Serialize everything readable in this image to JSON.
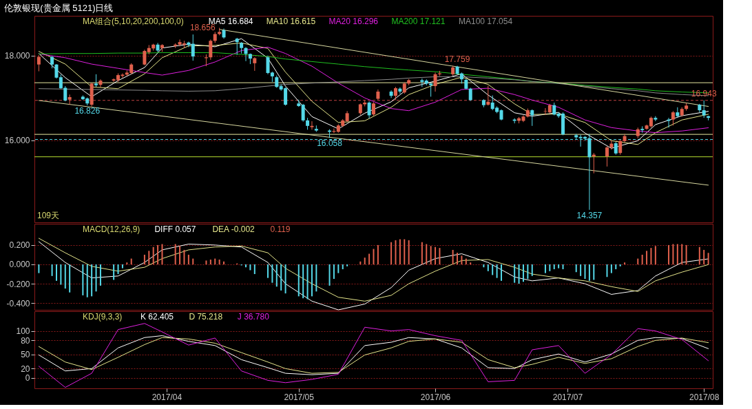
{
  "chart_data": [
    {
      "type": "candlestick",
      "title": "伦敦银现(贵金属 5121)日线",
      "legend": "top left",
      "legend_title": "MA组合(5,10,20,200,100,0)",
      "xlim": [
        "2017-03-02",
        "2017-08-03"
      ],
      "ylim": [
        14.06,
        18.94
      ],
      "yticks": [
        {
          "value": 16,
          "label": "16.000"
        },
        {
          "value": 18,
          "label": "18.000"
        }
      ],
      "tick_labels": "y",
      "grid": "y",
      "x": [
        "2017-03-03",
        "2017-03-06",
        "2017-03-07",
        "2017-03-08",
        "2017-03-09",
        "2017-03-10",
        "2017-03-13",
        "2017-03-14",
        "2017-03-15",
        "2017-03-16",
        "2017-03-17",
        "2017-03-20",
        "2017-03-21",
        "2017-03-22",
        "2017-03-23",
        "2017-03-24",
        "2017-03-27",
        "2017-03-28",
        "2017-03-29",
        "2017-03-30",
        "2017-03-31",
        "2017-04-03",
        "2017-04-04",
        "2017-04-05",
        "2017-04-06",
        "2017-04-07",
        "2017-04-10",
        "2017-04-11",
        "2017-04-12",
        "2017-04-13",
        "2017-04-14",
        "2017-04-17",
        "2017-04-18",
        "2017-04-19",
        "2017-04-20",
        "2017-04-21",
        "2017-04-24",
        "2017-04-25",
        "2017-04-26",
        "2017-04-27",
        "2017-04-28",
        "2017-05-01",
        "2017-05-02",
        "2017-05-03",
        "2017-05-04",
        "2017-05-05",
        "2017-05-08",
        "2017-05-09",
        "2017-05-10",
        "2017-05-11",
        "2017-05-12",
        "2017-05-15",
        "2017-05-16",
        "2017-05-17",
        "2017-05-18",
        "2017-05-19",
        "2017-05-22",
        "2017-05-23",
        "2017-05-24",
        "2017-05-25",
        "2017-05-26",
        "2017-05-29",
        "2017-05-30",
        "2017-05-31",
        "2017-06-01",
        "2017-06-02",
        "2017-06-05",
        "2017-06-06",
        "2017-06-07",
        "2017-06-08",
        "2017-06-09",
        "2017-06-12",
        "2017-06-13",
        "2017-06-14",
        "2017-06-15",
        "2017-06-16",
        "2017-06-19",
        "2017-06-20",
        "2017-06-21",
        "2017-06-22",
        "2017-06-23",
        "2017-06-26",
        "2017-06-27",
        "2017-06-28",
        "2017-06-29",
        "2017-06-30",
        "2017-07-03",
        "2017-07-04",
        "2017-07-05",
        "2017-07-06",
        "2017-07-07",
        "2017-07-10",
        "2017-07-11",
        "2017-07-12",
        "2017-07-13",
        "2017-07-14",
        "2017-07-17",
        "2017-07-18",
        "2017-07-19",
        "2017-07-20",
        "2017-07-21",
        "2017-07-24",
        "2017-07-25",
        "2017-07-26",
        "2017-07-27",
        "2017-07-28",
        "2017-07-31",
        "2017-08-01",
        "2017-08-02"
      ],
      "ohlc": [
        [
          17.79,
          18.01,
          17.63,
          17.97
        ],
        [
          17.97,
          17.99,
          17.7,
          17.79
        ],
        [
          17.79,
          17.8,
          17.46,
          17.48
        ],
        [
          17.49,
          17.55,
          17.22,
          17.23
        ],
        [
          17.24,
          17.28,
          16.92,
          16.94
        ],
        [
          16.96,
          17.08,
          16.84,
          17.02
        ],
        [
          17.03,
          17.06,
          16.95,
          16.97
        ],
        [
          16.99,
          17.01,
          16.826,
          16.87
        ],
        [
          16.84,
          17.36,
          16.8,
          17.34
        ],
        [
          17.34,
          17.56,
          17.26,
          17.3
        ],
        [
          17.31,
          17.44,
          17.25,
          17.41
        ],
        [
          17.41,
          17.46,
          17.38,
          17.44
        ],
        [
          17.42,
          17.58,
          17.38,
          17.54
        ],
        [
          17.52,
          17.58,
          17.48,
          17.55
        ],
        [
          17.55,
          17.65,
          17.52,
          17.6
        ],
        [
          17.59,
          17.82,
          17.56,
          17.79
        ],
        [
          17.79,
          18.14,
          17.77,
          18.11
        ],
        [
          18.08,
          18.25,
          18.03,
          18.18
        ],
        [
          18.17,
          18.28,
          18.12,
          18.26
        ],
        [
          18.26,
          18.3,
          18.08,
          18.12
        ],
        [
          18.18,
          18.27,
          18.09,
          18.25
        ],
        [
          18.23,
          18.29,
          18.18,
          18.26
        ],
        [
          18.26,
          18.38,
          18.22,
          18.32
        ],
        [
          18.26,
          18.35,
          18.18,
          18.29
        ],
        [
          18.31,
          18.33,
          18.2,
          18.25
        ],
        [
          18.28,
          18.5,
          17.88,
          17.98
        ],
        [
          17.94,
          18.03,
          17.75,
          17.96
        ],
        [
          17.96,
          18.38,
          17.9,
          18.35
        ],
        [
          18.35,
          18.56,
          18.3,
          18.51
        ],
        [
          18.51,
          18.656,
          18.48,
          18.56
        ],
        [
          18.6,
          18.64,
          18.4,
          18.43
        ],
        [
          18.4,
          18.42,
          18.02,
          18.32
        ],
        [
          18.3,
          18.32,
          18.05,
          18.18
        ],
        [
          18.18,
          18.2,
          17.87,
          18.04
        ],
        [
          18.04,
          18.05,
          17.8,
          17.93
        ],
        [
          17.82,
          17.96,
          17.64,
          17.94
        ],
        [
          17.96,
          18.0,
          17.56,
          17.59
        ],
        [
          17.6,
          17.62,
          17.38,
          17.51
        ],
        [
          17.49,
          17.53,
          17.24,
          17.26
        ],
        [
          17.28,
          17.32,
          17.17,
          17.2
        ],
        [
          17.23,
          17.25,
          16.82,
          16.84
        ],
        [
          16.87,
          16.96,
          16.79,
          16.81
        ],
        [
          16.84,
          16.86,
          16.44,
          16.47
        ],
        [
          16.47,
          16.53,
          16.25,
          16.34
        ],
        [
          16.31,
          16.45,
          16.25,
          16.34
        ],
        [
          16.27,
          16.35,
          16.2,
          16.23
        ],
        [
          16.23,
          16.26,
          16.058,
          16.2
        ],
        [
          16.2,
          16.28,
          16.17,
          16.22
        ],
        [
          16.2,
          16.38,
          16.18,
          16.35
        ],
        [
          16.34,
          16.5,
          16.31,
          16.47
        ],
        [
          16.45,
          16.69,
          16.43,
          16.64
        ],
        [
          16.64,
          16.87,
          16.6,
          16.85
        ],
        [
          16.85,
          16.95,
          16.8,
          16.89
        ],
        [
          16.89,
          16.92,
          16.52,
          16.59
        ],
        [
          16.61,
          16.9,
          16.58,
          16.87
        ],
        [
          16.98,
          17.2,
          16.95,
          17.15
        ],
        [
          17.15,
          17.18,
          17.0,
          17.05
        ],
        [
          17.05,
          17.26,
          16.95,
          17.23
        ],
        [
          17.22,
          17.25,
          17.1,
          17.15
        ],
        [
          17.13,
          17.37,
          17.1,
          17.34
        ],
        [
          17.34,
          17.45,
          17.3,
          17.42
        ],
        [
          17.42,
          17.46,
          17.26,
          17.38
        ],
        [
          17.41,
          17.44,
          17.3,
          17.34
        ],
        [
          17.34,
          17.36,
          17.03,
          17.3
        ],
        [
          17.28,
          17.6,
          17.15,
          17.56
        ],
        [
          17.56,
          17.64,
          17.52,
          17.58
        ],
        [
          17.56,
          17.76,
          17.53,
          17.72
        ],
        [
          17.74,
          17.759,
          17.55,
          17.57
        ],
        [
          17.58,
          17.6,
          17.34,
          17.44
        ],
        [
          17.43,
          17.45,
          17.2,
          17.22
        ],
        [
          17.22,
          17.24,
          16.93,
          16.95
        ],
        [
          16.95,
          16.97,
          16.78,
          16.83
        ],
        [
          16.84,
          17.29,
          16.82,
          16.91
        ],
        [
          16.89,
          17.06,
          16.71,
          16.74
        ],
        [
          16.77,
          16.8,
          16.64,
          16.67
        ],
        [
          16.71,
          16.73,
          16.47,
          16.49
        ],
        [
          16.49,
          16.52,
          16.4,
          16.46
        ],
        [
          16.46,
          16.55,
          16.4,
          16.52
        ],
        [
          16.46,
          16.59,
          16.43,
          16.56
        ],
        [
          16.56,
          16.75,
          16.54,
          16.71
        ],
        [
          16.71,
          16.73,
          16.34,
          16.59
        ],
        [
          16.68,
          16.76,
          16.6,
          16.69
        ],
        [
          16.66,
          16.86,
          16.64,
          16.83
        ],
        [
          16.83,
          16.89,
          16.59,
          16.61
        ],
        [
          16.63,
          16.66,
          16.53,
          16.57
        ],
        [
          16.63,
          16.66,
          16.12,
          16.14
        ],
        [
          16.12,
          16.15,
          16.02,
          16.07
        ],
        [
          16.08,
          16.13,
          15.85,
          16.05
        ],
        [
          16.08,
          16.1,
          15.99,
          16.04
        ],
        [
          16.05,
          16.15,
          14.357,
          15.6
        ],
        [
          15.62,
          15.7,
          15.22,
          15.66
        ],
        [
          15.62,
          15.86,
          15.38,
          15.83
        ],
        [
          15.83,
          16.0,
          15.78,
          15.92
        ],
        [
          15.93,
          15.96,
          15.66,
          15.69
        ],
        [
          15.7,
          16.02,
          15.66,
          15.98
        ],
        [
          15.98,
          16.15,
          15.95,
          16.1
        ],
        [
          16.1,
          16.3,
          16.05,
          16.26
        ],
        [
          16.27,
          16.33,
          16.18,
          16.24
        ],
        [
          16.27,
          16.37,
          16.25,
          16.35
        ],
        [
          16.33,
          16.56,
          16.3,
          16.53
        ],
        [
          16.53,
          16.57,
          16.45,
          16.49
        ],
        [
          16.49,
          16.53,
          16.3,
          16.46
        ],
        [
          16.49,
          16.69,
          16.35,
          16.66
        ],
        [
          16.66,
          16.78,
          16.54,
          16.57
        ],
        [
          16.59,
          16.78,
          16.56,
          16.74
        ],
        [
          16.74,
          16.88,
          16.7,
          16.82
        ],
        [
          16.84,
          16.86,
          16.66,
          16.71
        ],
        [
          16.71,
          16.943,
          16.53,
          16.59
        ],
        [
          16.57,
          16.58,
          16.47,
          16.53
        ]
      ],
      "colors": [
        "#e0604c",
        "#54d8e8",
        "#54d8e8",
        "#54d8e8",
        "#54d8e8",
        "#e0604c",
        "#54d8e8",
        "#54d8e8",
        "#e0604c",
        "#54d8e8",
        "#e0604c",
        "#e0604c",
        "#e0604c",
        "#e0604c",
        "#e0604c",
        "#e0604c",
        "#e0604c",
        "#e0604c",
        "#e0604c",
        "#54d8e8",
        "#e0604c",
        "#e0604c",
        "#e0604c",
        "#e0604c",
        "#54d8e8",
        "#54d8e8",
        "#e0604c",
        "#e0604c",
        "#e0604c",
        "#e0604c",
        "#54d8e8",
        "#54d8e8",
        "#54d8e8",
        "#54d8e8",
        "#54d8e8",
        "#e0604c",
        "#54d8e8",
        "#54d8e8",
        "#54d8e8",
        "#54d8e8",
        "#54d8e8",
        "#54d8e8",
        "#54d8e8",
        "#54d8e8",
        "#e0604c",
        "#54d8e8",
        "#54d8e8",
        "#e0604c",
        "#e0604c",
        "#e0604c",
        "#e0604c",
        "#e0604c",
        "#e0604c",
        "#54d8e8",
        "#e0604c",
        "#e0604c",
        "#54d8e8",
        "#e0604c",
        "#54d8e8",
        "#e0604c",
        "#e0604c",
        "#54d8e8",
        "#54d8e8",
        "#54d8e8",
        "#e0604c",
        "#e0604c",
        "#e0604c",
        "#54d8e8",
        "#54d8e8",
        "#54d8e8",
        "#54d8e8",
        "#54d8e8",
        "#e0604c",
        "#54d8e8",
        "#54d8e8",
        "#54d8e8",
        "#54d8e8",
        "#e0604c",
        "#e0604c",
        "#e0604c",
        "#54d8e8",
        "#e0604c",
        "#e0604c",
        "#54d8e8",
        "#54d8e8",
        "#54d8e8",
        "#54d8e8",
        "#54d8e8",
        "#54d8e8",
        "#54d8e8",
        "#e0604c",
        "#e0604c",
        "#e0604c",
        "#54d8e8",
        "#e0604c",
        "#e0604c",
        "#e0604c",
        "#54d8e8",
        "#e0604c",
        "#e0604c",
        "#54d8e8",
        "#54d8e8",
        "#e0604c",
        "#54d8e8",
        "#e0604c",
        "#e0604c",
        "#54d8e8",
        "#54d8e8",
        "#54d8e8"
      ],
      "series": [
        {
          "name": "MA5 16.684",
          "type": "line",
          "color": "#ffffff",
          "x": [
            "2017-03-03",
            "2017-03-09",
            "2017-03-15",
            "2017-03-21",
            "2017-03-27",
            "2017-03-31",
            "2017-04-06",
            "2017-04-12",
            "2017-04-18",
            "2017-04-24",
            "2017-04-28",
            "2017-05-04",
            "2017-05-10",
            "2017-05-16",
            "2017-05-22",
            "2017-05-26",
            "2017-06-01",
            "2017-06-07",
            "2017-06-13",
            "2017-06-19",
            "2017-06-23",
            "2017-06-29",
            "2017-07-05",
            "2017-07-11",
            "2017-07-17",
            "2017-07-21",
            "2017-07-27",
            "2017-08-02"
          ],
          "values": [
            18.05,
            17.48,
            17.03,
            17.41,
            17.72,
            18.18,
            18.27,
            18.21,
            18.4,
            17.94,
            17.28,
            16.56,
            16.27,
            16.64,
            16.91,
            17.24,
            17.4,
            17.57,
            17.07,
            16.65,
            16.57,
            16.66,
            16.17,
            15.81,
            15.99,
            16.37,
            16.58,
            16.684
          ]
        },
        {
          "name": "MA10 16.615",
          "type": "line",
          "color": "#e6e68c",
          "x": [
            "2017-03-03",
            "2017-03-09",
            "2017-03-15",
            "2017-03-21",
            "2017-03-27",
            "2017-03-31",
            "2017-04-06",
            "2017-04-12",
            "2017-04-18",
            "2017-04-24",
            "2017-04-28",
            "2017-05-04",
            "2017-05-10",
            "2017-05-16",
            "2017-05-22",
            "2017-05-26",
            "2017-06-01",
            "2017-06-07",
            "2017-06-13",
            "2017-06-19",
            "2017-06-23",
            "2017-06-29",
            "2017-07-05",
            "2017-07-11",
            "2017-07-17",
            "2017-07-21",
            "2017-07-27",
            "2017-08-02"
          ],
          "values": [
            18.1,
            17.8,
            17.26,
            17.22,
            17.57,
            17.95,
            18.23,
            18.24,
            18.3,
            18.17,
            17.61,
            16.92,
            16.42,
            16.46,
            16.78,
            17.08,
            17.32,
            17.49,
            17.32,
            16.86,
            16.61,
            16.62,
            16.42,
            15.99,
            15.9,
            16.18,
            16.48,
            16.615
          ]
        },
        {
          "name": "MA20 16.296",
          "type": "line",
          "color": "#e020e0",
          "x": [
            "2017-03-03",
            "2017-03-09",
            "2017-03-15",
            "2017-03-21",
            "2017-03-27",
            "2017-03-31",
            "2017-04-06",
            "2017-04-12",
            "2017-04-18",
            "2017-04-24",
            "2017-04-28",
            "2017-05-04",
            "2017-05-10",
            "2017-05-16",
            "2017-05-22",
            "2017-05-26",
            "2017-06-01",
            "2017-06-07",
            "2017-06-13",
            "2017-06-19",
            "2017-06-23",
            "2017-06-29",
            "2017-07-05",
            "2017-07-11",
            "2017-07-17",
            "2017-07-21",
            "2017-07-27",
            "2017-08-02"
          ],
          "values": [
            18.04,
            17.95,
            17.8,
            17.7,
            17.6,
            17.54,
            17.65,
            17.85,
            18.12,
            18.2,
            18.05,
            17.75,
            17.35,
            17.0,
            16.75,
            16.7,
            16.9,
            17.2,
            17.23,
            17.08,
            16.95,
            16.78,
            16.48,
            16.3,
            16.22,
            16.18,
            16.22,
            16.296
          ]
        },
        {
          "name": "MA200 17.121",
          "type": "line",
          "color": "#20c020",
          "x": [
            "2017-03-03",
            "2017-03-09",
            "2017-03-15",
            "2017-03-21",
            "2017-03-27",
            "2017-03-31",
            "2017-04-06",
            "2017-04-12",
            "2017-04-18",
            "2017-04-24",
            "2017-04-28",
            "2017-05-04",
            "2017-05-10",
            "2017-05-16",
            "2017-05-22",
            "2017-05-26",
            "2017-06-01",
            "2017-06-07",
            "2017-06-13",
            "2017-06-19",
            "2017-06-23",
            "2017-06-29",
            "2017-07-05",
            "2017-07-11",
            "2017-07-17",
            "2017-07-21",
            "2017-07-27",
            "2017-08-02"
          ],
          "values": [
            18.04,
            18.05,
            18.05,
            18.06,
            18.06,
            18.07,
            18.07,
            18.07,
            18.03,
            17.98,
            17.92,
            17.86,
            17.8,
            17.74,
            17.69,
            17.66,
            17.62,
            17.56,
            17.5,
            17.44,
            17.39,
            17.35,
            17.3,
            17.25,
            17.21,
            17.17,
            17.14,
            17.121
          ]
        },
        {
          "name": "MA100 17.054",
          "type": "line",
          "color": "#8c8c8c",
          "x": [
            "2017-03-03",
            "2017-03-09",
            "2017-03-15",
            "2017-03-21",
            "2017-03-27",
            "2017-03-31",
            "2017-04-06",
            "2017-04-12",
            "2017-04-18",
            "2017-04-24",
            "2017-04-28",
            "2017-05-04",
            "2017-05-10",
            "2017-05-16",
            "2017-05-22",
            "2017-05-26",
            "2017-06-01",
            "2017-06-07",
            "2017-06-13",
            "2017-06-19",
            "2017-06-23",
            "2017-06-29",
            "2017-07-05",
            "2017-07-11",
            "2017-07-17",
            "2017-07-21",
            "2017-07-27",
            "2017-08-02"
          ],
          "values": [
            17.22,
            17.21,
            17.2,
            17.19,
            17.18,
            17.17,
            17.16,
            17.17,
            17.22,
            17.28,
            17.32,
            17.35,
            17.38,
            17.41,
            17.44,
            17.47,
            17.5,
            17.5,
            17.47,
            17.43,
            17.39,
            17.34,
            17.28,
            17.22,
            17.17,
            17.12,
            17.08,
            17.054
          ]
        },
        {
          "type": "line",
          "color": "#d8d8a0",
          "x": [
            "2017-04-13",
            "2017-08-02"
          ],
          "values": [
            18.62,
            16.8
          ]
        },
        {
          "type": "line",
          "color": "#d8d8a0",
          "x": [
            "2017-03-03",
            "2017-08-02"
          ],
          "values": [
            16.94,
            14.94
          ]
        }
      ],
      "ref_lines": [
        {
          "axis": "y",
          "value": 17.36,
          "color": "#e8e8a0"
        },
        {
          "axis": "y",
          "value": 16.14,
          "color": "#e8e8a0"
        },
        {
          "axis": "y",
          "value": 16.943,
          "color": "#c04040",
          "line_style": "dashed"
        },
        {
          "axis": "y",
          "value": 16.02,
          "color": "#54d8e8",
          "line_style": "dashed"
        },
        {
          "axis": "y",
          "value": 15.61,
          "color": "#b8e030"
        }
      ],
      "annotations": [
        {
          "text": "18.656",
          "x": "2017-04-13",
          "y": 18.656
        },
        {
          "text": "16.826",
          "x": "2017-03-14",
          "y": 16.826
        },
        {
          "text": "16.058",
          "x": "2017-05-08",
          "y": 16.058
        },
        {
          "text": "17.759",
          "x": "2017-06-06",
          "y": 17.759
        },
        {
          "text": "16.943",
          "x": "2017-08-01",
          "y": 16.943
        },
        {
          "text": "14.357",
          "x": "2017-07-06",
          "y": 14.357
        },
        "109天"
      ]
    },
    {
      "type": "bar",
      "legend": "top left",
      "legend_title": "MACD(12,26,9)",
      "xlim": [
        "2017-03-02",
        "2017-08-03"
      ],
      "ylim": [
        -0.47,
        0.42
      ],
      "yticks": [
        {
          "value": 0.2,
          "label": "0.200"
        },
        {
          "value": 0,
          "label": "0.000"
        },
        {
          "value": -0.2,
          "label": "-0.200"
        },
        {
          "value": -0.4,
          "label": "-0.400"
        }
      ],
      "tick_labels": "y",
      "grid": "y",
      "x": [
        "2017-03-03",
        "2017-03-06",
        "2017-03-07",
        "2017-03-08",
        "2017-03-09",
        "2017-03-10",
        "2017-03-13",
        "2017-03-14",
        "2017-03-15",
        "2017-03-16",
        "2017-03-17",
        "2017-03-20",
        "2017-03-21",
        "2017-03-22",
        "2017-03-23",
        "2017-03-24",
        "2017-03-27",
        "2017-03-28",
        "2017-03-29",
        "2017-03-30",
        "2017-03-31",
        "2017-04-03",
        "2017-04-04",
        "2017-04-05",
        "2017-04-06",
        "2017-04-07",
        "2017-04-10",
        "2017-04-11",
        "2017-04-12",
        "2017-04-13",
        "2017-04-14",
        "2017-04-17",
        "2017-04-18",
        "2017-04-19",
        "2017-04-20",
        "2017-04-21",
        "2017-04-24",
        "2017-04-25",
        "2017-04-26",
        "2017-04-27",
        "2017-04-28",
        "2017-05-01",
        "2017-05-02",
        "2017-05-03",
        "2017-05-04",
        "2017-05-05",
        "2017-05-08",
        "2017-05-09",
        "2017-05-10",
        "2017-05-11",
        "2017-05-12",
        "2017-05-15",
        "2017-05-16",
        "2017-05-17",
        "2017-05-18",
        "2017-05-19",
        "2017-05-22",
        "2017-05-23",
        "2017-05-24",
        "2017-05-25",
        "2017-05-26",
        "2017-05-29",
        "2017-05-30",
        "2017-05-31",
        "2017-06-01",
        "2017-06-02",
        "2017-06-05",
        "2017-06-06",
        "2017-06-07",
        "2017-06-08",
        "2017-06-09",
        "2017-06-12",
        "2017-06-13",
        "2017-06-14",
        "2017-06-15",
        "2017-06-16",
        "2017-06-19",
        "2017-06-20",
        "2017-06-21",
        "2017-06-22",
        "2017-06-23",
        "2017-06-26",
        "2017-06-27",
        "2017-06-28",
        "2017-06-29",
        "2017-06-30",
        "2017-07-03",
        "2017-07-04",
        "2017-07-05",
        "2017-07-06",
        "2017-07-07",
        "2017-07-10",
        "2017-07-11",
        "2017-07-12",
        "2017-07-13",
        "2017-07-14",
        "2017-07-17",
        "2017-07-18",
        "2017-07-19",
        "2017-07-20",
        "2017-07-21",
        "2017-07-24",
        "2017-07-25",
        "2017-07-26",
        "2017-07-27",
        "2017-07-28",
        "2017-07-31",
        "2017-08-01",
        "2017-08-02"
      ],
      "series": [
        {
          "name": "DIFF 0.057",
          "type": "line",
          "color": "#ffffff",
          "x": [
            "2017-03-03",
            "2017-03-09",
            "2017-03-15",
            "2017-03-21",
            "2017-03-27",
            "2017-03-31",
            "2017-04-06",
            "2017-04-12",
            "2017-04-18",
            "2017-04-24",
            "2017-04-28",
            "2017-05-04",
            "2017-05-10",
            "2017-05-16",
            "2017-05-22",
            "2017-05-26",
            "2017-06-01",
            "2017-06-07",
            "2017-06-13",
            "2017-06-19",
            "2017-06-23",
            "2017-06-29",
            "2017-07-05",
            "2017-07-11",
            "2017-07-17",
            "2017-07-21",
            "2017-07-27",
            "2017-08-02"
          ],
          "values": [
            0.235,
            0.02,
            -0.14,
            -0.12,
            0.02,
            0.15,
            0.21,
            0.2,
            0.18,
            0.02,
            -0.2,
            -0.38,
            -0.47,
            -0.41,
            -0.24,
            -0.06,
            0.06,
            0.11,
            0.02,
            -0.13,
            -0.17,
            -0.14,
            -0.2,
            -0.31,
            -0.27,
            -0.12,
            0.02,
            0.057
          ]
        },
        {
          "name": "DEA -0.002",
          "type": "line",
          "color": "#e6e68c",
          "x": [
            "2017-03-03",
            "2017-03-09",
            "2017-03-15",
            "2017-03-21",
            "2017-03-27",
            "2017-03-31",
            "2017-04-06",
            "2017-04-12",
            "2017-04-18",
            "2017-04-24",
            "2017-04-28",
            "2017-05-04",
            "2017-05-10",
            "2017-05-16",
            "2017-05-22",
            "2017-05-26",
            "2017-06-01",
            "2017-06-07",
            "2017-06-13",
            "2017-06-19",
            "2017-06-23",
            "2017-06-29",
            "2017-07-05",
            "2017-07-11",
            "2017-07-17",
            "2017-07-21",
            "2017-07-27",
            "2017-08-02"
          ],
          "values": [
            0.27,
            0.12,
            -0.02,
            -0.07,
            -0.03,
            0.06,
            0.15,
            0.18,
            0.19,
            0.12,
            -0.04,
            -0.2,
            -0.34,
            -0.38,
            -0.32,
            -0.2,
            -0.07,
            0.04,
            0.05,
            -0.03,
            -0.1,
            -0.14,
            -0.17,
            -0.23,
            -0.28,
            -0.17,
            -0.08,
            -0.002
          ]
        },
        {
          "name": "0.119",
          "type": "bar",
          "color": "#e0604c",
          "values": [
            -0.09,
            -0.12,
            -0.17,
            -0.21,
            -0.25,
            -0.29,
            -0.32,
            -0.34,
            -0.33,
            -0.28,
            -0.22,
            -0.16,
            -0.1,
            -0.04,
            0.02,
            0.06,
            0.1,
            0.14,
            0.18,
            0.2,
            0.21,
            0.21,
            0.19,
            0.15,
            0.1,
            0.06,
            0.04,
            0.05,
            0.06,
            0.05,
            0.03,
            0.01,
            -0.01,
            -0.03,
            -0.06,
            -0.1,
            -0.14,
            -0.19,
            -0.23,
            -0.27,
            -0.3,
            -0.33,
            -0.35,
            -0.36,
            -0.33,
            -0.28,
            -0.22,
            -0.15,
            -0.09,
            -0.05,
            -0.02,
            0.03,
            0.07,
            0.11,
            0.16,
            0.2,
            0.23,
            0.25,
            0.26,
            0.26,
            0.25,
            0.23,
            0.21,
            0.19,
            0.18,
            0.17,
            0.15,
            0.12,
            0.09,
            0.06,
            0.02,
            -0.03,
            -0.07,
            -0.11,
            -0.14,
            -0.17,
            -0.19,
            -0.2,
            -0.18,
            -0.15,
            -0.12,
            -0.09,
            -0.07,
            -0.05,
            -0.04,
            -0.05,
            -0.08,
            -0.12,
            -0.15,
            -0.17,
            -0.16,
            -0.13,
            -0.09,
            -0.05,
            -0.02,
            0.02,
            0.06,
            0.1,
            0.14,
            0.17,
            0.19,
            0.2,
            0.21,
            0.21,
            0.21,
            0.2,
            0.18,
            0.15,
            0.119
          ],
          "colors": [
            "#54d8e8",
            "#54d8e8",
            "#54d8e8",
            "#54d8e8",
            "#54d8e8",
            "#54d8e8",
            "#54d8e8",
            "#54d8e8",
            "#54d8e8",
            "#54d8e8",
            "#54d8e8",
            "#54d8e8",
            "#54d8e8",
            "#54d8e8",
            "#e0604c",
            "#e0604c",
            "#e0604c",
            "#e0604c",
            "#e0604c",
            "#e0604c",
            "#e0604c",
            "#e0604c",
            "#e0604c",
            "#e0604c",
            "#e0604c",
            "#e0604c",
            "#e0604c",
            "#e0604c",
            "#e0604c",
            "#e0604c",
            "#e0604c",
            "#e0604c",
            "#54d8e8",
            "#54d8e8",
            "#54d8e8",
            "#54d8e8",
            "#54d8e8",
            "#54d8e8",
            "#54d8e8",
            "#54d8e8",
            "#54d8e8",
            "#54d8e8",
            "#54d8e8",
            "#54d8e8",
            "#54d8e8",
            "#54d8e8",
            "#54d8e8",
            "#54d8e8",
            "#54d8e8",
            "#54d8e8",
            "#54d8e8",
            "#e0604c",
            "#e0604c",
            "#e0604c",
            "#e0604c",
            "#e0604c",
            "#e0604c",
            "#e0604c",
            "#e0604c",
            "#e0604c",
            "#e0604c",
            "#e0604c",
            "#e0604c",
            "#e0604c",
            "#e0604c",
            "#e0604c",
            "#e0604c",
            "#e0604c",
            "#e0604c",
            "#e0604c",
            "#e0604c",
            "#54d8e8",
            "#54d8e8",
            "#54d8e8",
            "#54d8e8",
            "#54d8e8",
            "#54d8e8",
            "#54d8e8",
            "#54d8e8",
            "#54d8e8",
            "#54d8e8",
            "#54d8e8",
            "#54d8e8",
            "#54d8e8",
            "#54d8e8",
            "#54d8e8",
            "#54d8e8",
            "#54d8e8",
            "#54d8e8",
            "#54d8e8",
            "#54d8e8",
            "#54d8e8",
            "#54d8e8",
            "#54d8e8",
            "#54d8e8",
            "#e0604c",
            "#e0604c",
            "#e0604c",
            "#e0604c",
            "#e0604c",
            "#e0604c",
            "#e0604c",
            "#e0604c",
            "#e0604c",
            "#e0604c",
            "#e0604c",
            "#e0604c",
            "#e0604c",
            "#e0604c"
          ]
        }
      ]
    },
    {
      "type": "line",
      "legend": "top left",
      "legend_title": "KDJ(9,3,3)",
      "xlim": [
        "2017-03-02",
        "2017-08-03"
      ],
      "ylim": [
        -22,
        142
      ],
      "yticks": [
        0,
        20,
        50,
        80,
        100
      ],
      "grid": "y",
      "xticks": [
        {
          "value": "2017-04-01",
          "label": "2017/04"
        },
        {
          "value": "2017-05-01",
          "label": "2017/05"
        },
        {
          "value": "2017-06-01",
          "label": "2017/06"
        },
        {
          "value": "2017-07-01",
          "label": "2017/07"
        },
        {
          "value": "2017-08-01",
          "label": "2017/08"
        }
      ],
      "series": [
        {
          "name": "K 62.405",
          "type": "line",
          "color": "#ffffff",
          "x": [
            "2017-03-03",
            "2017-03-09",
            "2017-03-15",
            "2017-03-21",
            "2017-03-27",
            "2017-03-31",
            "2017-04-06",
            "2017-04-12",
            "2017-04-18",
            "2017-04-24",
            "2017-04-28",
            "2017-05-04",
            "2017-05-10",
            "2017-05-16",
            "2017-05-22",
            "2017-05-26",
            "2017-06-01",
            "2017-06-07",
            "2017-06-13",
            "2017-06-19",
            "2017-06-23",
            "2017-06-29",
            "2017-07-05",
            "2017-07-11",
            "2017-07-17",
            "2017-07-21",
            "2017-07-27",
            "2017-08-02"
          ],
          "values": [
            49,
            15,
            20,
            64,
            86,
            90,
            78,
            69,
            39,
            22,
            10,
            7,
            10,
            69,
            76,
            86,
            83,
            64,
            22,
            20,
            39,
            51,
            34,
            51,
            80,
            86,
            84,
            62.405
          ]
        },
        {
          "name": "D 75.218",
          "type": "line",
          "color": "#e6e68c",
          "x": [
            "2017-03-03",
            "2017-03-09",
            "2017-03-15",
            "2017-03-21",
            "2017-03-27",
            "2017-03-31",
            "2017-04-06",
            "2017-04-12",
            "2017-04-18",
            "2017-04-24",
            "2017-04-28",
            "2017-05-04",
            "2017-05-10",
            "2017-05-16",
            "2017-05-22",
            "2017-05-26",
            "2017-06-01",
            "2017-06-07",
            "2017-06-13",
            "2017-06-19",
            "2017-06-23",
            "2017-06-29",
            "2017-07-05",
            "2017-07-11",
            "2017-07-17",
            "2017-07-21",
            "2017-07-27",
            "2017-08-02"
          ],
          "values": [
            67,
            34,
            18,
            44,
            71,
            86,
            83,
            74,
            54,
            34,
            20,
            10,
            12,
            49,
            64,
            78,
            83,
            76,
            39,
            22,
            29,
            44,
            31,
            41,
            67,
            80,
            85,
            75.218
          ]
        },
        {
          "name": "J 36.780",
          "type": "line",
          "color": "#e020e0",
          "x": [
            "2017-03-03",
            "2017-03-09",
            "2017-03-15",
            "2017-03-21",
            "2017-03-27",
            "2017-03-31",
            "2017-04-06",
            "2017-04-12",
            "2017-04-18",
            "2017-04-24",
            "2017-04-28",
            "2017-05-04",
            "2017-05-10",
            "2017-05-16",
            "2017-05-22",
            "2017-05-26",
            "2017-06-01",
            "2017-06-07",
            "2017-06-13",
            "2017-06-19",
            "2017-06-23",
            "2017-06-29",
            "2017-07-05",
            "2017-07-11",
            "2017-07-17",
            "2017-07-21",
            "2017-07-27",
            "2017-08-02"
          ],
          "values": [
            25,
            -20,
            10,
            103,
            116,
            98,
            70,
            85,
            15,
            -5,
            -10,
            -3,
            8,
            108,
            100,
            103,
            90,
            80,
            -8,
            -5,
            60,
            69,
            10,
            50,
            105,
            100,
            82,
            36.78
          ]
        }
      ]
    }
  ]
}
